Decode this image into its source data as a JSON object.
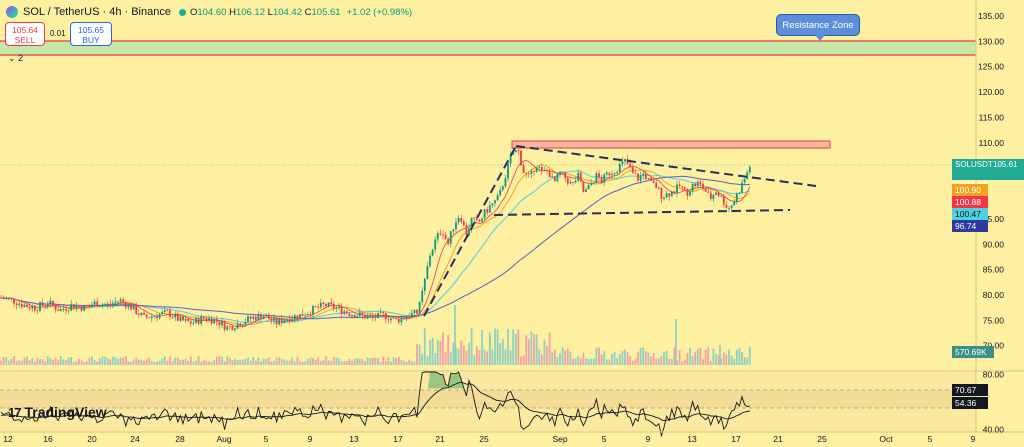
{
  "header": {
    "symbol": "SOL / TetherUS · 4h · Binance",
    "open_label": "O",
    "open": "104.60",
    "high_label": "H",
    "high": "106.12",
    "low_label": "L",
    "low": "104.42",
    "close_label": "C",
    "close": "105.61",
    "change": "+1.02 (+0.98%)"
  },
  "trade": {
    "sell_price": "105.64",
    "sell_label": "SELL",
    "spread": "0.01",
    "buy_price": "105.65",
    "buy_label": "BUY"
  },
  "indicator_toggle": "2",
  "annotation": {
    "resistance_label": "Resistance Zone"
  },
  "logo": "TradingView",
  "price_axis": {
    "ticks": [
      "135.00",
      "130.00",
      "125.00",
      "120.00",
      "115.00",
      "110.00",
      "95.00",
      "90.00",
      "85.00",
      "80.00",
      "75.00",
      "70.00"
    ],
    "tags": {
      "symbol": "SOLUSDT",
      "last_price": "105.61",
      "countdown": "01:21:38",
      "ma_fast": "100.90",
      "ma_mid": "100.88",
      "ma_slow": "100.47",
      "ma_long": "96.74",
      "volume": "570.69K"
    }
  },
  "rsi_axis": {
    "ticks": [
      "80.00",
      "40.00"
    ],
    "tags": {
      "rsi": "70.67",
      "rsi_ma": "54.36"
    }
  },
  "time_axis": {
    "labels": [
      "12",
      "16",
      "20",
      "24",
      "28",
      "Aug",
      "5",
      "9",
      "13",
      "17",
      "21",
      "25",
      "Sep",
      "5",
      "9",
      "13",
      "17",
      "21",
      "25",
      "Oct",
      "5",
      "9"
    ]
  },
  "colors": {
    "background": "#fdf0a0",
    "up": "#089981",
    "down": "#f23645",
    "ma_orange": "#f7a21b",
    "ma_cyan": "#4dd0e1",
    "ma_purple": "#5b5fc7",
    "resistance_fill": "#c4e8a6",
    "resistance_line": "#f23645",
    "pattern_line": "#2a2e5c"
  },
  "chart_data": {
    "type": "candlestick",
    "symbol": "SOLUSDT",
    "timeframe": "4h",
    "close_path": [
      [
        0,
        79.5
      ],
      [
        12,
        79.0
      ],
      [
        24,
        78.0
      ],
      [
        36,
        77.5
      ],
      [
        48,
        78.5
      ],
      [
        60,
        77.0
      ],
      [
        72,
        78.0
      ],
      [
        84,
        77.5
      ],
      [
        96,
        78.5
      ],
      [
        108,
        78.0
      ],
      [
        120,
        79.0
      ],
      [
        132,
        77.5
      ],
      [
        144,
        75.5
      ],
      [
        156,
        76.0
      ],
      [
        168,
        76.5
      ],
      [
        180,
        75.0
      ],
      [
        192,
        74.5
      ],
      [
        204,
        75.5
      ],
      [
        216,
        75.0
      ],
      [
        228,
        73.5
      ],
      [
        240,
        74.5
      ],
      [
        252,
        75.5
      ],
      [
        264,
        76.0
      ],
      [
        276,
        74.5
      ],
      [
        288,
        75.5
      ],
      [
        300,
        76.0
      ],
      [
        312,
        77.0
      ],
      [
        324,
        78.0
      ],
      [
        336,
        77.5
      ],
      [
        348,
        76.5
      ],
      [
        360,
        76.0
      ],
      [
        372,
        75.5
      ],
      [
        384,
        76.0
      ],
      [
        396,
        75.0
      ],
      [
        408,
        76.0
      ],
      [
        418,
        76.5
      ],
      [
        424,
        82.0
      ],
      [
        430,
        88.0
      ],
      [
        436,
        91.0
      ],
      [
        442,
        93.0
      ],
      [
        448,
        90.0
      ],
      [
        454,
        94.0
      ],
      [
        460,
        96.0
      ],
      [
        466,
        92.0
      ],
      [
        472,
        95.0
      ],
      [
        478,
        94.0
      ],
      [
        484,
        96.0
      ],
      [
        490,
        97.5
      ],
      [
        496,
        98.5
      ],
      [
        500,
        100.0
      ],
      [
        506,
        104.0
      ],
      [
        512,
        108.0
      ],
      [
        518,
        108.5
      ],
      [
        524,
        104.0
      ],
      [
        530,
        103.0
      ],
      [
        536,
        106.0
      ],
      [
        542,
        104.0
      ],
      [
        548,
        104.5
      ],
      [
        554,
        102.0
      ],
      [
        560,
        104.0
      ],
      [
        566,
        103.0
      ],
      [
        572,
        101.5
      ],
      [
        578,
        103.5
      ],
      [
        584,
        100.0
      ],
      [
        590,
        101.5
      ],
      [
        596,
        103.5
      ],
      [
        602,
        102.5
      ],
      [
        608,
        104.0
      ],
      [
        614,
        104.5
      ],
      [
        620,
        105.5
      ],
      [
        626,
        106.5
      ],
      [
        632,
        104.0
      ],
      [
        638,
        103.0
      ],
      [
        644,
        104.0
      ],
      [
        650,
        102.0
      ],
      [
        656,
        101.5
      ],
      [
        662,
        99.5
      ],
      [
        668,
        100.0
      ],
      [
        674,
        100.5
      ],
      [
        680,
        101.5
      ],
      [
        686,
        100.0
      ],
      [
        692,
        101.5
      ],
      [
        698,
        102.0
      ],
      [
        704,
        101.0
      ],
      [
        710,
        99.0
      ],
      [
        716,
        100.5
      ],
      [
        722,
        99.0
      ],
      [
        728,
        97.0
      ],
      [
        734,
        98.5
      ],
      [
        740,
        101.0
      ],
      [
        746,
        103.5
      ],
      [
        750,
        105.6
      ]
    ],
    "rsi_ylim": [
      40,
      80
    ],
    "rsi_levels": [
      70,
      30
    ],
    "resistance_zone": [
      127.5,
      130.0
    ],
    "pattern_box": [
      110.0,
      108.5
    ],
    "pattern": "symmetrical triangle",
    "price_ylim": [
      65,
      137
    ]
  }
}
